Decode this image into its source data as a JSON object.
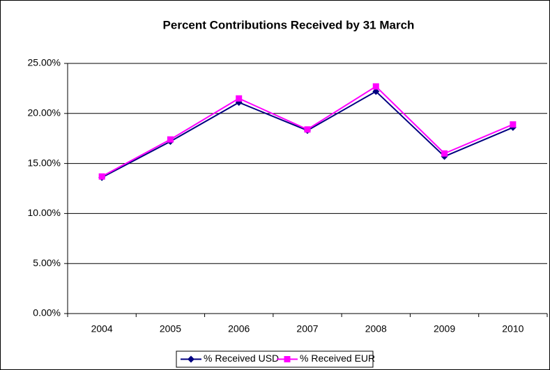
{
  "chart_data": {
    "type": "line",
    "title": "Percent Contributions Received by 31 March",
    "categories": [
      "2004",
      "2005",
      "2006",
      "2007",
      "2008",
      "2009",
      "2010"
    ],
    "series": [
      {
        "name": "% Received USD",
        "color": "#000080",
        "marker": "diamond",
        "values": [
          13.6,
          17.2,
          21.1,
          18.3,
          22.2,
          15.7,
          18.6
        ]
      },
      {
        "name": "% Received EUR",
        "color": "#ff00ff",
        "marker": "square",
        "values": [
          13.7,
          17.4,
          21.5,
          18.4,
          22.7,
          16.0,
          18.9
        ]
      }
    ],
    "ylim": [
      0,
      25
    ],
    "yticks": [
      {
        "value": 0,
        "label": "0.00%"
      },
      {
        "value": 5,
        "label": "5.00%"
      },
      {
        "value": 10,
        "label": "10.00%"
      },
      {
        "value": 15,
        "label": "15.00%"
      },
      {
        "value": 20,
        "label": "20.00%"
      },
      {
        "value": 25,
        "label": "25.00%"
      }
    ],
    "grid": true,
    "legend": "bottom"
  }
}
